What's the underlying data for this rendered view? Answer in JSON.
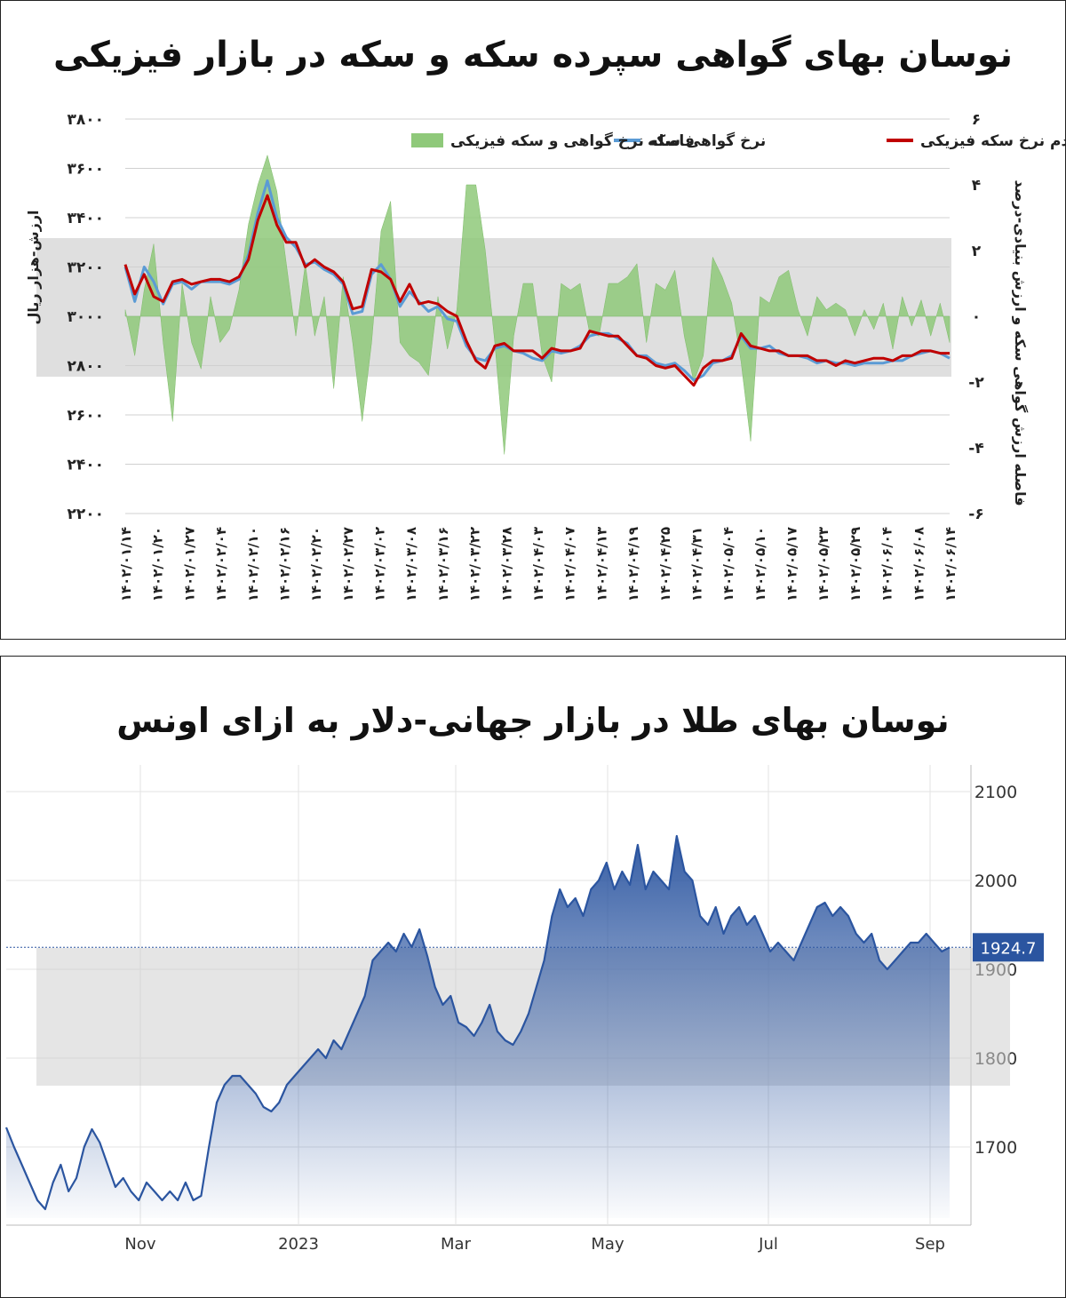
{
  "chart_data": [
    {
      "type": "line",
      "title": "نوسان بهای گواهی سپرده سکه و سکه در بازار فیزیکی",
      "ylabel": "ارزش-هزار ریال",
      "y2label": "فاصله ارزش گواهی سکه و ارزش بنیادی-درصد",
      "ylim": [
        2200,
        3800
      ],
      "y2lim": [
        -6,
        6
      ],
      "y_ticks": [
        "۳۸۰۰",
        "۳۶۰۰",
        "۳۴۰۰",
        "۳۲۰۰",
        "۳۰۰۰",
        "۲۸۰۰",
        "۲۶۰۰",
        "۲۴۰۰",
        "۲۲۰۰"
      ],
      "y2_ticks": [
        "۶",
        "۴",
        "۲",
        "۰",
        "-۲",
        "-۴",
        "-۶"
      ],
      "x_ticks": [
        "۱۴۰۲/۰۱/۱۴",
        "۱۴۰۲/۰۱/۲۰",
        "۱۴۰۲/۰۱/۲۷",
        "۱۴۰۲/۰۲/۰۴",
        "۱۴۰۲/۰۲/۱۰",
        "۱۴۰۲/۰۲/۱۶",
        "۱۴۰۲/۰۲/۲۰",
        "۱۴۰۲/۰۲/۲۷",
        "۱۴۰۲/۰۳/۰۲",
        "۱۴۰۲/۰۳/۰۸",
        "۱۴۰۲/۰۳/۱۶",
        "۱۴۰۲/۰۳/۲۲",
        "۱۴۰۲/۰۳/۲۸",
        "۱۴۰۲/۰۴/۰۳",
        "۱۴۰۲/۰۴/۰۷",
        "۱۴۰۲/۰۴/۱۳",
        "۱۴۰۲/۰۴/۱۹",
        "۱۴۰۲/۰۴/۲۵",
        "۱۴۰۲/۰۴/۳۱",
        "۱۴۰۲/۰۵/۰۴",
        "۱۴۰۲/۰۵/۱۰",
        "۱۴۰۲/۰۵/۱۷",
        "۱۴۰۲/۰۵/۲۳",
        "۱۴۰۲/۰۵/۲۹",
        "۱۴۰۲/۰۶/۰۴",
        "۱۴۰۲/۰۶/۰۸",
        "۱۴۰۲/۰۶/۱۴"
      ],
      "legend": {
        "placement": "top",
        "items": [
          {
            "name": "یک صدم نرخ سکه فیزیکی",
            "color": "#c00000"
          },
          {
            "name": "نرخ گواهی سکه",
            "color": "#5b9bd5"
          },
          {
            "name": "فاصله نرخ گواهی و سکه فیزیکی",
            "color": "#8fc97a"
          }
        ]
      },
      "series": [
        {
          "name": "یک صدم نرخ سکه فیزیکی",
          "axis": "left",
          "values": [
            3210,
            3090,
            3170,
            3080,
            3060,
            3140,
            3150,
            3130,
            3140,
            3150,
            3150,
            3140,
            3160,
            3230,
            3390,
            3490,
            3370,
            3300,
            3300,
            3200,
            3230,
            3200,
            3180,
            3140,
            3030,
            3040,
            3190,
            3180,
            3150,
            3060,
            3130,
            3050,
            3060,
            3050,
            3020,
            3000,
            2900,
            2820,
            2790,
            2880,
            2890,
            2860,
            2860,
            2860,
            2830,
            2870,
            2860,
            2860,
            2870,
            2940,
            2930,
            2920,
            2920,
            2880,
            2840,
            2830,
            2800,
            2790,
            2800,
            2760,
            2720,
            2790,
            2820,
            2820,
            2830,
            2930,
            2880,
            2870,
            2860,
            2860,
            2840,
            2840,
            2840,
            2820,
            2820,
            2800,
            2820,
            2810,
            2820,
            2830,
            2830,
            2820,
            2840,
            2840,
            2860,
            2860,
            2850,
            2850
          ]
        },
        {
          "name": "نرخ گواهی سکه",
          "axis": "left",
          "values": [
            3200,
            3060,
            3200,
            3140,
            3050,
            3130,
            3140,
            3110,
            3140,
            3140,
            3140,
            3130,
            3150,
            3250,
            3420,
            3550,
            3400,
            3320,
            3280,
            3210,
            3220,
            3190,
            3170,
            3130,
            3010,
            3020,
            3170,
            3210,
            3150,
            3040,
            3100,
            3060,
            3020,
            3040,
            2990,
            2980,
            2880,
            2830,
            2820,
            2870,
            2880,
            2860,
            2850,
            2830,
            2820,
            2860,
            2850,
            2860,
            2880,
            2920,
            2930,
            2930,
            2910,
            2890,
            2840,
            2840,
            2810,
            2800,
            2810,
            2780,
            2740,
            2760,
            2810,
            2820,
            2840,
            2920,
            2870,
            2870,
            2880,
            2850,
            2840,
            2840,
            2830,
            2810,
            2820,
            2810,
            2810,
            2800,
            2810,
            2810,
            2810,
            2820,
            2820,
            2840,
            2850,
            2860,
            2850,
            2830
          ]
        },
        {
          "name": "فاصله نرخ گواهی و سکه فیزیکی",
          "axis": "right",
          "type": "area",
          "values": [
            0.2,
            -1.2,
            0.8,
            2.2,
            -0.8,
            -3.2,
            1.0,
            -0.8,
            -1.6,
            0.6,
            -0.8,
            -0.4,
            0.8,
            2.8,
            4.0,
            4.9,
            3.8,
            1.6,
            -0.6,
            1.6,
            -0.6,
            0.6,
            -2.2,
            1.2,
            -0.8,
            -3.2,
            -0.8,
            2.6,
            3.5,
            -0.8,
            -1.2,
            -1.4,
            -1.8,
            0.6,
            -1.0,
            0.2,
            4.0,
            4.0,
            2.0,
            -0.8,
            -4.2,
            -0.6,
            1.0,
            1.0,
            -1.2,
            -2.0,
            1.0,
            0.8,
            1.0,
            -0.5,
            -0.6,
            1.0,
            1.0,
            1.2,
            1.6,
            -0.8,
            1.0,
            0.8,
            1.4,
            -0.6,
            -2.0,
            -1.2,
            1.8,
            1.2,
            0.4,
            -1.4,
            -3.8,
            0.6,
            0.4,
            1.2,
            1.4,
            0.2,
            -0.6,
            0.6,
            0.2,
            0.4,
            0.2,
            -0.6,
            0.2,
            -0.4,
            0.4,
            -1.0,
            0.6,
            -0.3,
            0.5,
            -0.6,
            0.4,
            -0.8
          ]
        }
      ]
    },
    {
      "type": "area",
      "title": "نوسان بهای طلا در بازار جهانی-دلار به ازای اونس",
      "ylim": [
        1620,
        2130
      ],
      "y_ticks": [
        "2100",
        "2000",
        "1900",
        "1800",
        "1700"
      ],
      "x_ticks": [
        "Nov",
        "2023",
        "Mar",
        "May",
        "Jul",
        "Sep"
      ],
      "last_value_label": "1924.7",
      "last_value": 1924.7,
      "series": [
        {
          "name": "",
          "color": "#2b55a0",
          "values": [
            1722,
            1700,
            1680,
            1660,
            1640,
            1630,
            1660,
            1680,
            1650,
            1665,
            1700,
            1720,
            1705,
            1680,
            1655,
            1665,
            1650,
            1640,
            1660,
            1650,
            1640,
            1650,
            1640,
            1660,
            1640,
            1645,
            1700,
            1750,
            1770,
            1780,
            1780,
            1770,
            1760,
            1745,
            1740,
            1750,
            1770,
            1780,
            1790,
            1800,
            1810,
            1800,
            1820,
            1810,
            1830,
            1850,
            1870,
            1910,
            1920,
            1930,
            1920,
            1940,
            1925,
            1945,
            1915,
            1880,
            1860,
            1870,
            1840,
            1835,
            1825,
            1840,
            1860,
            1830,
            1820,
            1815,
            1830,
            1850,
            1880,
            1910,
            1960,
            1990,
            1970,
            1980,
            1960,
            1990,
            2000,
            2020,
            1990,
            2010,
            1995,
            2040,
            1990,
            2010,
            2000,
            1990,
            2050,
            2010,
            2000,
            1960,
            1950,
            1970,
            1940,
            1960,
            1970,
            1950,
            1960,
            1940,
            1920,
            1930,
            1920,
            1910,
            1930,
            1950,
            1970,
            1975,
            1960,
            1970,
            1960,
            1940,
            1930,
            1940,
            1910,
            1900,
            1910,
            1920,
            1930,
            1930,
            1940,
            1930,
            1920,
            1924.7
          ]
        }
      ]
    }
  ]
}
